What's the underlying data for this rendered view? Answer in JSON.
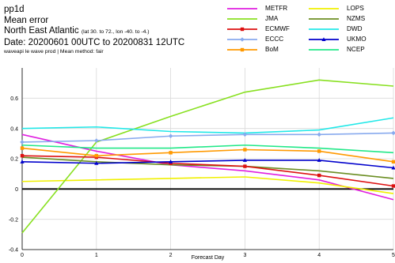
{
  "header": {
    "product": "pp1d",
    "metric": "Mean error",
    "region_name": "North East Atlantic",
    "region_extent": "(lat 30. to 72., lon -40. to -4.)",
    "date_label": "Date: 20200601 00UTC to 20200831 12UTC",
    "footnote": "waveapi le wave prod | Mean method: fair"
  },
  "chart_data": {
    "type": "line",
    "xlabel": "Forecast Day",
    "ylabel": "",
    "x": [
      0,
      1,
      2,
      3,
      4,
      5
    ],
    "xlim": [
      0,
      5
    ],
    "ylim": [
      -0.4,
      0.8
    ],
    "xticks": [
      "0",
      "1",
      "2",
      "3",
      "4",
      "5"
    ],
    "yticks": [
      "-0.4",
      "-0.2",
      "0",
      "0.2",
      "0.4",
      "0.6"
    ],
    "grid": true,
    "zero_line": true,
    "legend_position": "top-right",
    "series": [
      {
        "name": "METFR",
        "color": "#e020e0",
        "marker": "none",
        "values": [
          0.36,
          0.25,
          0.16,
          0.12,
          0.06,
          -0.07
        ]
      },
      {
        "name": "LOPS",
        "color": "#f0f000",
        "marker": "none",
        "values": [
          0.05,
          0.06,
          0.07,
          0.08,
          0.04,
          -0.03
        ]
      },
      {
        "name": "JMA",
        "color": "#88e020",
        "marker": "none",
        "values": [
          -0.29,
          0.31,
          0.48,
          0.64,
          0.72,
          0.68
        ]
      },
      {
        "name": "NZMS",
        "color": "#6b8e23",
        "marker": "none",
        "values": [
          0.21,
          0.18,
          0.16,
          0.15,
          0.12,
          0.07
        ]
      },
      {
        "name": "ECMWF",
        "color": "#dd1111",
        "marker": "square",
        "values": [
          0.22,
          0.21,
          0.17,
          0.15,
          0.09,
          0.02
        ]
      },
      {
        "name": "DWD",
        "color": "#22e8e8",
        "marker": "none",
        "values": [
          0.4,
          0.41,
          0.38,
          0.37,
          0.39,
          0.47
        ]
      },
      {
        "name": "ECCC",
        "color": "#88aaee",
        "marker": "diamond",
        "values": [
          0.31,
          0.32,
          0.35,
          0.36,
          0.36,
          0.37
        ]
      },
      {
        "name": "UKMO",
        "color": "#0000cc",
        "marker": "triangle",
        "values": [
          0.18,
          0.17,
          0.18,
          0.19,
          0.19,
          0.14
        ]
      },
      {
        "name": "BoM",
        "color": "#ff9900",
        "marker": "square",
        "values": [
          0.27,
          0.22,
          0.24,
          0.26,
          0.25,
          0.18
        ]
      },
      {
        "name": "NCEP",
        "color": "#22e888",
        "marker": "none",
        "values": [
          0.29,
          0.27,
          0.27,
          0.29,
          0.27,
          0.24
        ]
      }
    ]
  }
}
